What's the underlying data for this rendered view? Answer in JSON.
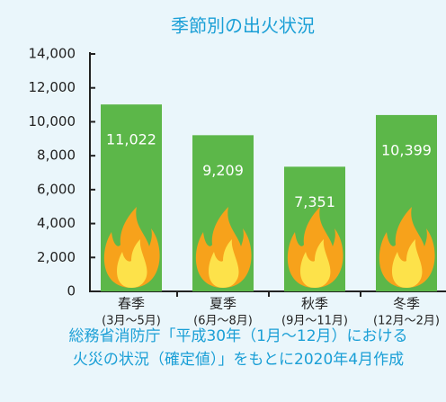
{
  "chart_data": {
    "type": "bar",
    "title": "季節別の出火状況",
    "categories": [
      "春季",
      "夏季",
      "秋季",
      "冬季"
    ],
    "category_notes": [
      "(3月～5月)",
      "(6月～8月)",
      "(9月～11月)",
      "(12月～2月)"
    ],
    "values": [
      11022,
      9209,
      7351,
      10399
    ],
    "value_labels": [
      "11,022",
      "9,209",
      "7,351",
      "10,399"
    ],
    "color": "#5cb749",
    "ylim": [
      0,
      14000
    ],
    "yticks": [
      0,
      {
        "value": 2000,
        "label": "2,000"
      },
      {
        "value": 4000,
        "label": "4,000"
      },
      {
        "value": 6000,
        "label": "6,000"
      },
      {
        "value": 8000,
        "label": "8,000"
      },
      {
        "value": 10000,
        "label": "10,000"
      },
      {
        "value": 12000,
        "label": "12,000"
      },
      {
        "value": 14000,
        "label": "14,000"
      }
    ],
    "grid": false,
    "source_lines": [
      "総務省消防庁「平成30年（1月～12月）における",
      "火災の状況（確定値）」をもとに2020年4月作成"
    ]
  }
}
